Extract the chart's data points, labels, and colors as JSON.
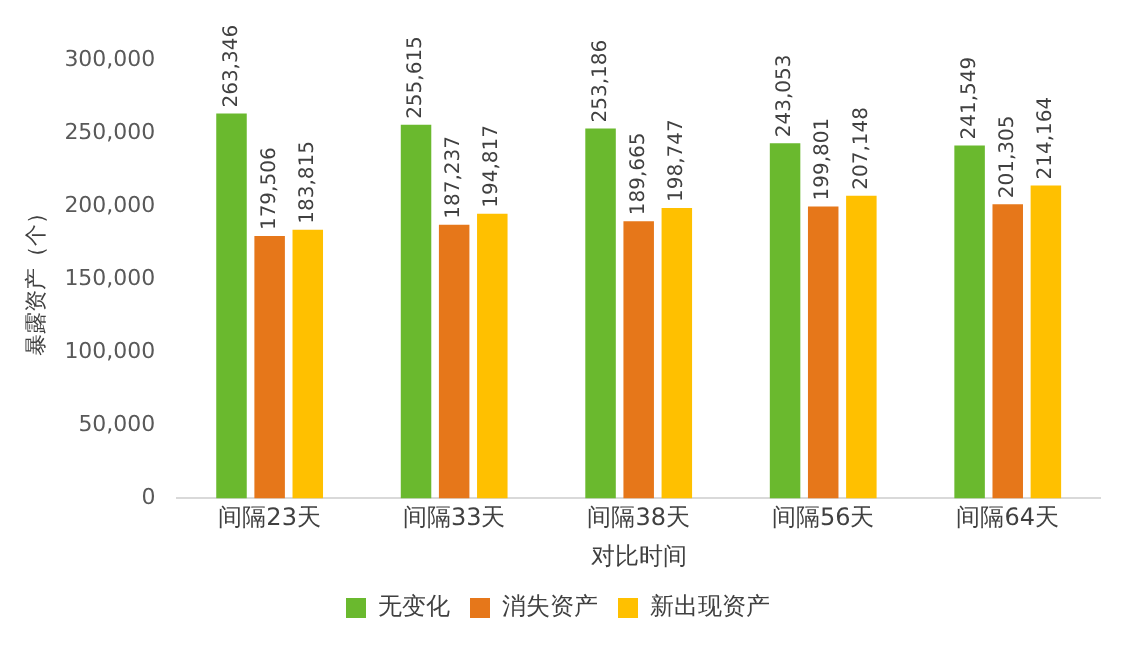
{
  "chart_data": {
    "type": "bar",
    "xlabel": "对比时间",
    "ylabel": "暴露资产（个）",
    "categories": [
      "间隔23天",
      "间隔33天",
      "间隔38天",
      "间隔56天",
      "间隔64天"
    ],
    "series": [
      {
        "name": "无变化",
        "color": "#6ab92e",
        "values": [
          263346,
          255615,
          253186,
          243053,
          241549
        ],
        "value_labels": [
          "263,346",
          "255,615",
          "253,186",
          "243,053",
          "241,549"
        ]
      },
      {
        "name": "消失资产",
        "color": "#e6771a",
        "values": [
          179506,
          187237,
          189665,
          199801,
          201305
        ],
        "value_labels": [
          "179,506",
          "187,237",
          "189,665",
          "199,801",
          "201,305"
        ]
      },
      {
        "name": "新出现资产",
        "color": "#ffc000",
        "values": [
          183815,
          194817,
          198747,
          207148,
          214164
        ],
        "value_labels": [
          "183,815",
          "194,817",
          "198,747",
          "207,148",
          "214,164"
        ]
      }
    ],
    "ylim": [
      0,
      300000
    ],
    "yticks": [
      0,
      {
        "value": 50000,
        "label": "50,000"
      },
      {
        "value": 100000,
        "label": "100,000"
      },
      {
        "value": 150000,
        "label": "150,000"
      },
      {
        "value": 200000,
        "label": "200,000"
      },
      {
        "value": 250000,
        "label": "250,000"
      },
      {
        "value": 300000,
        "label": "300,000"
      }
    ],
    "grid": false,
    "legend": "bottom"
  }
}
